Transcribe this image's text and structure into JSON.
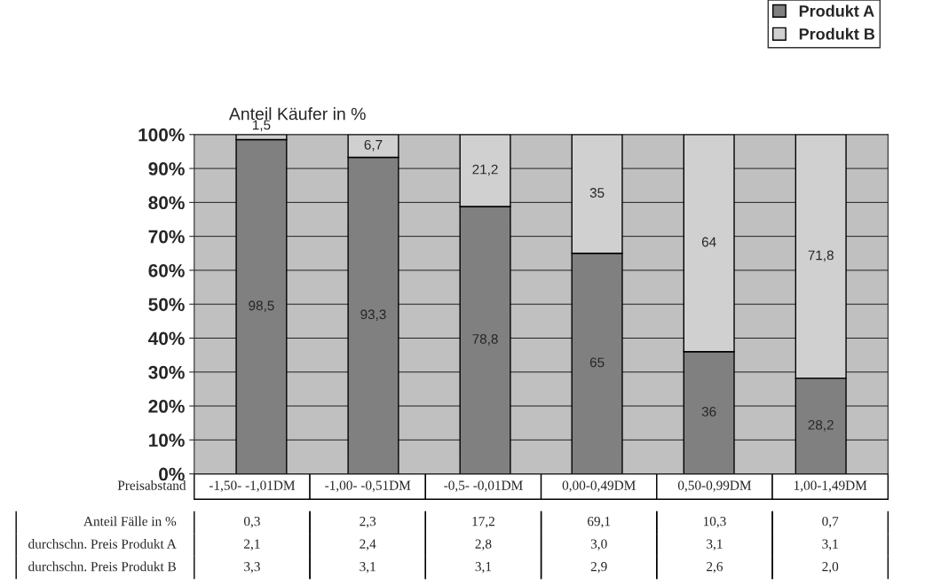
{
  "chart_data": {
    "type": "bar",
    "title": "Anteil Käufer in %",
    "xlabel": "Preisabstand",
    "categories": [
      "-1,50- -1,01DM",
      "-1,00- -0,51DM",
      "-0,5- -0,01DM",
      "0,00-0,49DM",
      "0,50-0,99DM",
      "1,00-1,49DM"
    ],
    "stacked": true,
    "series": [
      {
        "name": "Produkt A",
        "color": "#808080",
        "values": [
          98.5,
          93.3,
          78.8,
          65,
          36,
          28.2
        ],
        "value_labels": [
          "98,5",
          "93,3",
          "78,8",
          "65",
          "36",
          "28,2"
        ]
      },
      {
        "name": "Produkt B",
        "color": "#d0d0d0",
        "values": [
          1.5,
          6.7,
          21.2,
          35,
          64,
          71.8
        ],
        "value_labels": [
          "1,5",
          "6,7",
          "21,2",
          "35",
          "64",
          "71,8"
        ]
      }
    ],
    "ylim": [
      0,
      100
    ],
    "yticks": [
      {
        "value": 0,
        "label": "0%"
      },
      {
        "value": 10,
        "label": "10%"
      },
      {
        "value": 20,
        "label": "20%"
      },
      {
        "value": 30,
        "label": "30%"
      },
      {
        "value": 40,
        "label": "40%"
      },
      {
        "value": 50,
        "label": "50%"
      },
      {
        "value": 60,
        "label": "60%"
      },
      {
        "value": 70,
        "label": "70%"
      },
      {
        "value": 80,
        "label": "80%"
      },
      {
        "value": 90,
        "label": "90%"
      },
      {
        "value": 100,
        "label": "100%"
      }
    ],
    "grid": "y",
    "legend": "top right",
    "annotations": [
      "Anteil Fälle in %",
      "0,3",
      "2,3",
      "17,2",
      "69,1",
      "10,3",
      "0,7",
      "durchschn. Preis Produkt A",
      "2,1",
      "2,4",
      "2,8",
      "3,0",
      "3,1",
      "3,1",
      "durchschn. Preis Produkt B",
      "3,3",
      "3,1",
      "3,1",
      "2,9",
      "2,6",
      "2,0"
    ]
  }
}
